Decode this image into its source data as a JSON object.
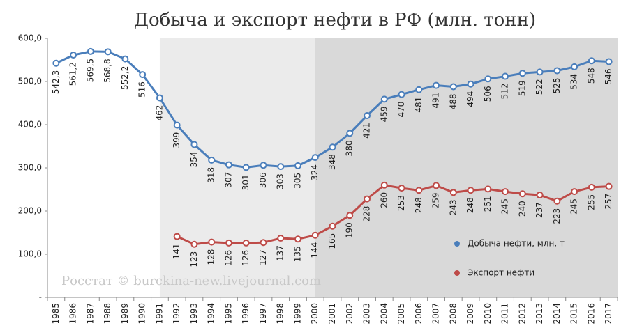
{
  "chart_data": {
    "type": "line",
    "title": "Добыча и экспорт нефти в РФ (млн. тонн)",
    "annotations": [
      "Росстат © burckina-new.livejournal.com"
    ],
    "categories": [
      "1985",
      "1986",
      "1987",
      "1988",
      "1989",
      "1990",
      "1991",
      "1992",
      "1993",
      "1994",
      "1995",
      "1996",
      "1997",
      "1998",
      "1999",
      "2000",
      "2001",
      "2002",
      "2003",
      "2004",
      "2005",
      "2006",
      "2007",
      "2008",
      "2009",
      "2010",
      "2011",
      "2012",
      "2013",
      "2014",
      "2015",
      "2016",
      "2017"
    ],
    "series": [
      {
        "name": "Добыча нефти, млн. т",
        "color": "#4a7ebb",
        "values": [
          542.3,
          561.2,
          569.5,
          568.8,
          552.2,
          516,
          462,
          399,
          354,
          318,
          307,
          301,
          306,
          303,
          305,
          324,
          348,
          380,
          421,
          459,
          470,
          481,
          491,
          488,
          494,
          506,
          512,
          519,
          522,
          525,
          534,
          548,
          546
        ],
        "value_labels": [
          "542,3",
          "561,2",
          "569,5",
          "568,8",
          "552,2",
          "516",
          "462",
          "399",
          "354",
          "318",
          "307",
          "301",
          "306",
          "303",
          "305",
          "324",
          "348",
          "380",
          "421",
          "459",
          "470",
          "481",
          "491",
          "488",
          "494",
          "506",
          "512",
          "519",
          "522",
          "525",
          "534",
          "548",
          "546"
        ]
      },
      {
        "name": "Экспорт нефти",
        "color": "#be4b48",
        "values": [
          null,
          null,
          null,
          null,
          null,
          null,
          null,
          141,
          123,
          128,
          126,
          126,
          127,
          137,
          135,
          144,
          165,
          190,
          228,
          260,
          253,
          248,
          259,
          243,
          248,
          251,
          245,
          240,
          237,
          223,
          245,
          255,
          257
        ]
      }
    ],
    "ylim": [
      0,
      600
    ],
    "yticks": [
      {
        "value": 0,
        "label": "-"
      },
      {
        "value": 100,
        "label": "100,0"
      },
      {
        "value": 200,
        "label": "200,0"
      },
      {
        "value": 300,
        "label": "300,0"
      },
      {
        "value": 400,
        "label": "400,0"
      },
      {
        "value": 500,
        "label": "500,0"
      },
      {
        "value": 600,
        "label": "600,0"
      }
    ],
    "legend": "right"
  }
}
